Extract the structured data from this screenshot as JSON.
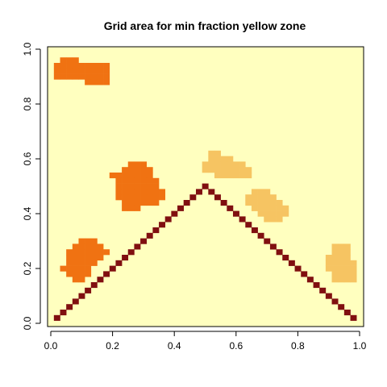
{
  "chart_data": {
    "type": "heatmap",
    "title": "Grid area for min fraction yellow zone",
    "xlabel": "",
    "ylabel": "",
    "xlim": [
      0,
      1
    ],
    "ylim": [
      0,
      1
    ],
    "grid": false,
    "legend": "none",
    "x_ticks": [
      "0.0",
      "0.2",
      "0.4",
      "0.6",
      "0.8",
      "1.0"
    ],
    "y_ticks": [
      "0.0",
      "0.2",
      "0.4",
      "0.6",
      "0.8",
      "1.0"
    ],
    "cell_size": 0.02,
    "colors": {
      "background": "#ffffbf",
      "light_orange": "#f6c462",
      "dark_orange": "#f07212",
      "diagonal": "#800f10"
    },
    "regions": [
      {
        "name": "",
        "color_key": "dark_orange",
        "rows": [
          {
            "y": 0.96,
            "x0": 0.04,
            "x1": 0.08
          },
          {
            "y": 0.94,
            "x0": 0.02,
            "x1": 0.18
          },
          {
            "y": 0.92,
            "x0": 0.02,
            "x1": 0.18
          },
          {
            "y": 0.9,
            "x0": 0.02,
            "x1": 0.18
          },
          {
            "y": 0.88,
            "x0": 0.12,
            "x1": 0.18
          }
        ]
      },
      {
        "name": "",
        "color_key": "dark_orange",
        "rows": [
          {
            "y": 0.58,
            "x0": 0.26,
            "x1": 0.3
          },
          {
            "y": 0.56,
            "x0": 0.24,
            "x1": 0.32
          },
          {
            "y": 0.54,
            "x0": 0.2,
            "x1": 0.32
          },
          {
            "y": 0.52,
            "x0": 0.22,
            "x1": 0.34
          },
          {
            "y": 0.5,
            "x0": 0.22,
            "x1": 0.34
          },
          {
            "y": 0.48,
            "x0": 0.22,
            "x1": 0.36
          },
          {
            "y": 0.46,
            "x0": 0.22,
            "x1": 0.36
          },
          {
            "y": 0.44,
            "x0": 0.24,
            "x1": 0.34
          },
          {
            "y": 0.42,
            "x0": 0.24,
            "x1": 0.28
          }
        ]
      },
      {
        "name": "",
        "color_key": "dark_orange",
        "rows": [
          {
            "y": 0.3,
            "x0": 0.1,
            "x1": 0.14
          },
          {
            "y": 0.28,
            "x0": 0.08,
            "x1": 0.16
          },
          {
            "y": 0.26,
            "x0": 0.06,
            "x1": 0.18
          },
          {
            "y": 0.24,
            "x0": 0.06,
            "x1": 0.16
          },
          {
            "y": 0.22,
            "x0": 0.06,
            "x1": 0.14
          },
          {
            "y": 0.2,
            "x0": 0.04,
            "x1": 0.12
          },
          {
            "y": 0.18,
            "x0": 0.06,
            "x1": 0.12
          },
          {
            "y": 0.16,
            "x0": 0.08,
            "x1": 0.1
          }
        ]
      },
      {
        "name": "",
        "color_key": "light_orange",
        "rows": [
          {
            "y": 0.62,
            "x0": 0.52,
            "x1": 0.54
          },
          {
            "y": 0.6,
            "x0": 0.52,
            "x1": 0.58
          },
          {
            "y": 0.58,
            "x0": 0.5,
            "x1": 0.62
          },
          {
            "y": 0.56,
            "x0": 0.5,
            "x1": 0.64
          },
          {
            "y": 0.54,
            "x0": 0.54,
            "x1": 0.64
          }
        ]
      },
      {
        "name": "",
        "color_key": "light_orange",
        "rows": [
          {
            "y": 0.48,
            "x0": 0.66,
            "x1": 0.7
          },
          {
            "y": 0.46,
            "x0": 0.64,
            "x1": 0.72
          },
          {
            "y": 0.44,
            "x0": 0.64,
            "x1": 0.74
          },
          {
            "y": 0.42,
            "x0": 0.66,
            "x1": 0.76
          },
          {
            "y": 0.4,
            "x0": 0.68,
            "x1": 0.76
          },
          {
            "y": 0.38,
            "x0": 0.7,
            "x1": 0.74
          }
        ]
      },
      {
        "name": "",
        "color_key": "light_orange",
        "rows": [
          {
            "y": 0.28,
            "x0": 0.92,
            "x1": 0.96
          },
          {
            "y": 0.26,
            "x0": 0.92,
            "x1": 0.96
          },
          {
            "y": 0.24,
            "x0": 0.9,
            "x1": 0.96
          },
          {
            "y": 0.22,
            "x0": 0.9,
            "x1": 0.98
          },
          {
            "y": 0.2,
            "x0": 0.9,
            "x1": 0.98
          },
          {
            "y": 0.18,
            "x0": 0.92,
            "x1": 0.98
          },
          {
            "y": 0.16,
            "x0": 0.92,
            "x1": 0.98
          }
        ]
      }
    ],
    "diagonal": {
      "name": "",
      "color_key": "diagonal",
      "description_points": "tent line from (0.02,0.02) up to (0.50,0.50) down to (0.98,0.02)",
      "x_start": 0.02,
      "x_end": 0.98,
      "peak_x": 0.5
    }
  }
}
